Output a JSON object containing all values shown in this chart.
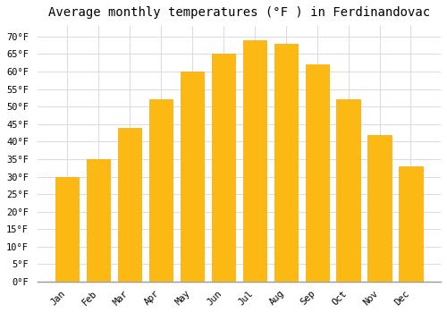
{
  "title": "Average monthly temperatures (°F ) in Ferdinandovac",
  "months": [
    "Jan",
    "Feb",
    "Mar",
    "Apr",
    "May",
    "Jun",
    "Jul",
    "Aug",
    "Sep",
    "Oct",
    "Nov",
    "Dec"
  ],
  "values": [
    30,
    35,
    44,
    52,
    60,
    65,
    69,
    68,
    62,
    52,
    42,
    33
  ],
  "bar_color": "#FDB913",
  "bar_edge_color": "#F5A800",
  "background_color": "#FFFFFF",
  "grid_color": "#DDDDDD",
  "ylim": [
    0,
    73
  ],
  "yticks": [
    0,
    5,
    10,
    15,
    20,
    25,
    30,
    35,
    40,
    45,
    50,
    55,
    60,
    65,
    70
  ],
  "title_fontsize": 10,
  "tick_fontsize": 7.5,
  "font_family": "monospace"
}
